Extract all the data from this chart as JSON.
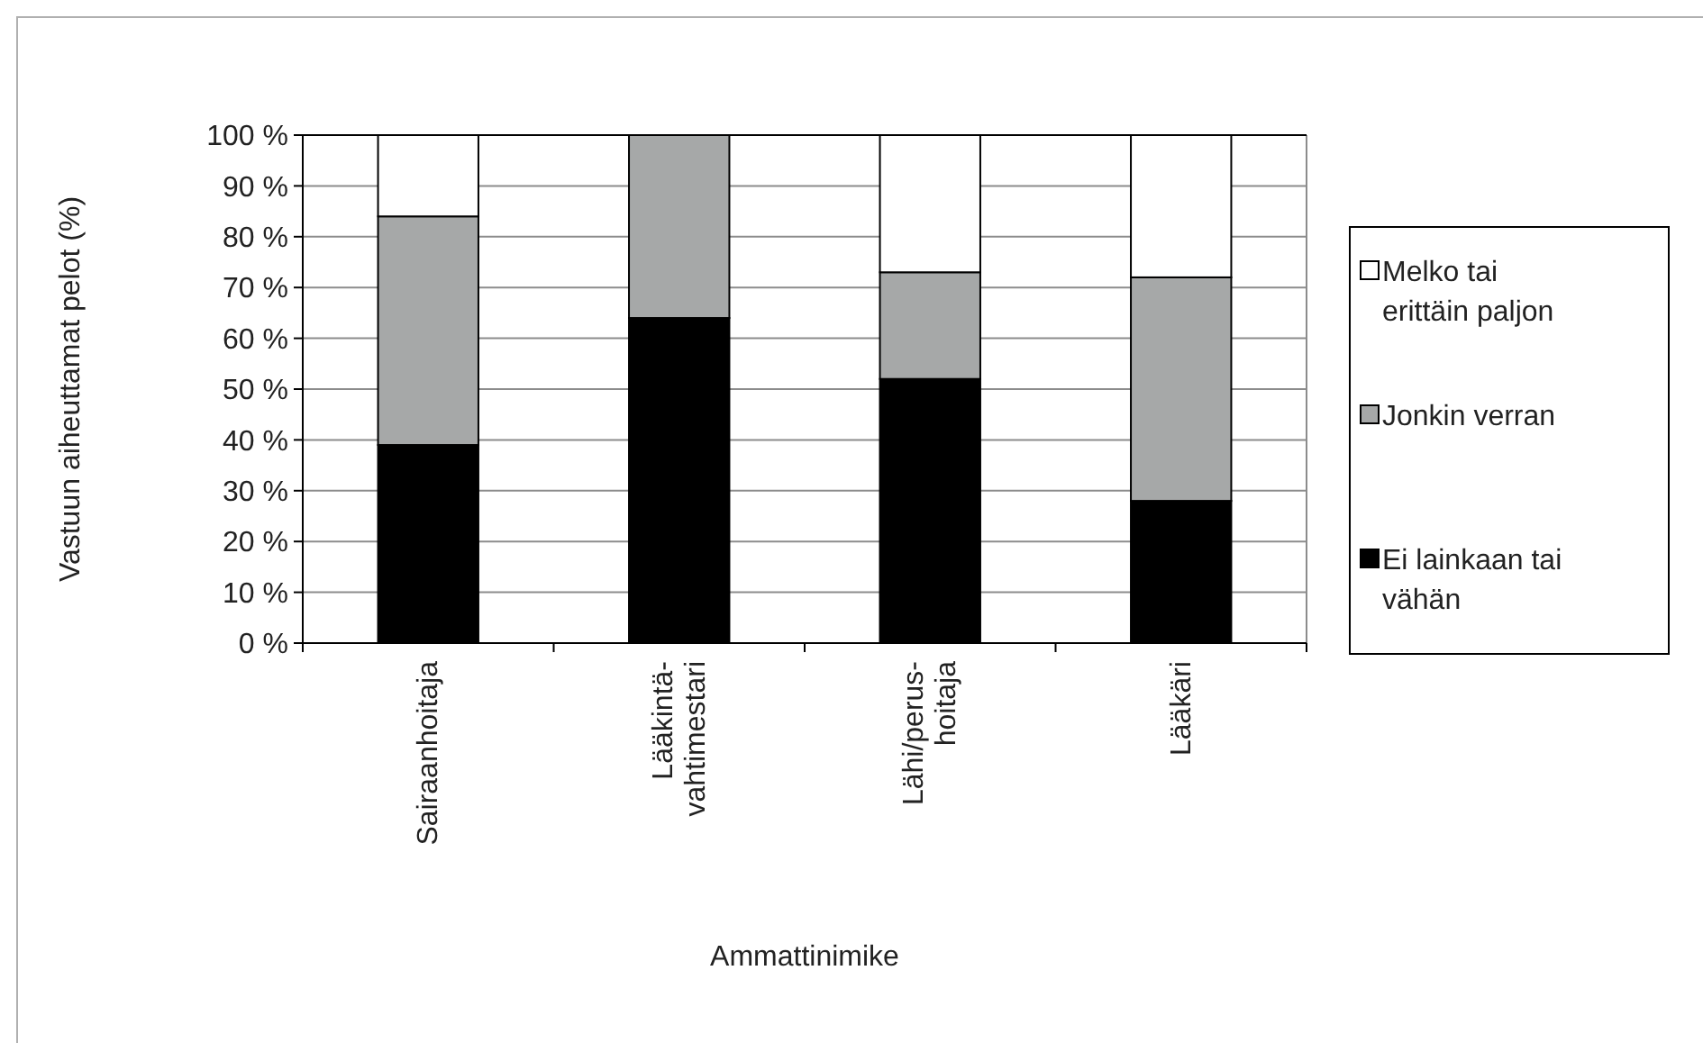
{
  "chart_data": {
    "type": "bar",
    "stacked": true,
    "xlabel": "Ammattinimike",
    "ylabel": "Vastuun aiheuttamat pelot (%)",
    "categories": [
      "Sairaanhoitaja",
      "Lääkintä-\nvahtimestari",
      "Lähi/perus-\nhoitaja",
      "Lääkäri"
    ],
    "series": [
      {
        "name": "Ei lainkaan tai vähän",
        "color": "#000000",
        "values": [
          39,
          64,
          52,
          28
        ]
      },
      {
        "name": "Jonkin verran",
        "color": "#a6a8a8",
        "values": [
          45,
          36,
          21,
          44
        ]
      },
      {
        "name": "Melko tai erittäin paljon",
        "color": "#ffffff",
        "values": [
          16,
          0,
          27,
          28
        ]
      }
    ],
    "ylim": [
      0,
      100
    ],
    "yticks": [
      {
        "value": 0,
        "label": "0 %"
      },
      {
        "value": 10,
        "label": "10 %"
      },
      {
        "value": 20,
        "label": "20 %"
      },
      {
        "value": 30,
        "label": "30 %"
      },
      {
        "value": 40,
        "label": "40 %"
      },
      {
        "value": 50,
        "label": "50 %"
      },
      {
        "value": 60,
        "label": "60 %"
      },
      {
        "value": 70,
        "label": "70 %"
      },
      {
        "value": 80,
        "label": "80 %"
      },
      {
        "value": 90,
        "label": "90 %"
      },
      {
        "value": 100,
        "label": "100 %"
      }
    ],
    "grid": "y",
    "legend": "right"
  }
}
